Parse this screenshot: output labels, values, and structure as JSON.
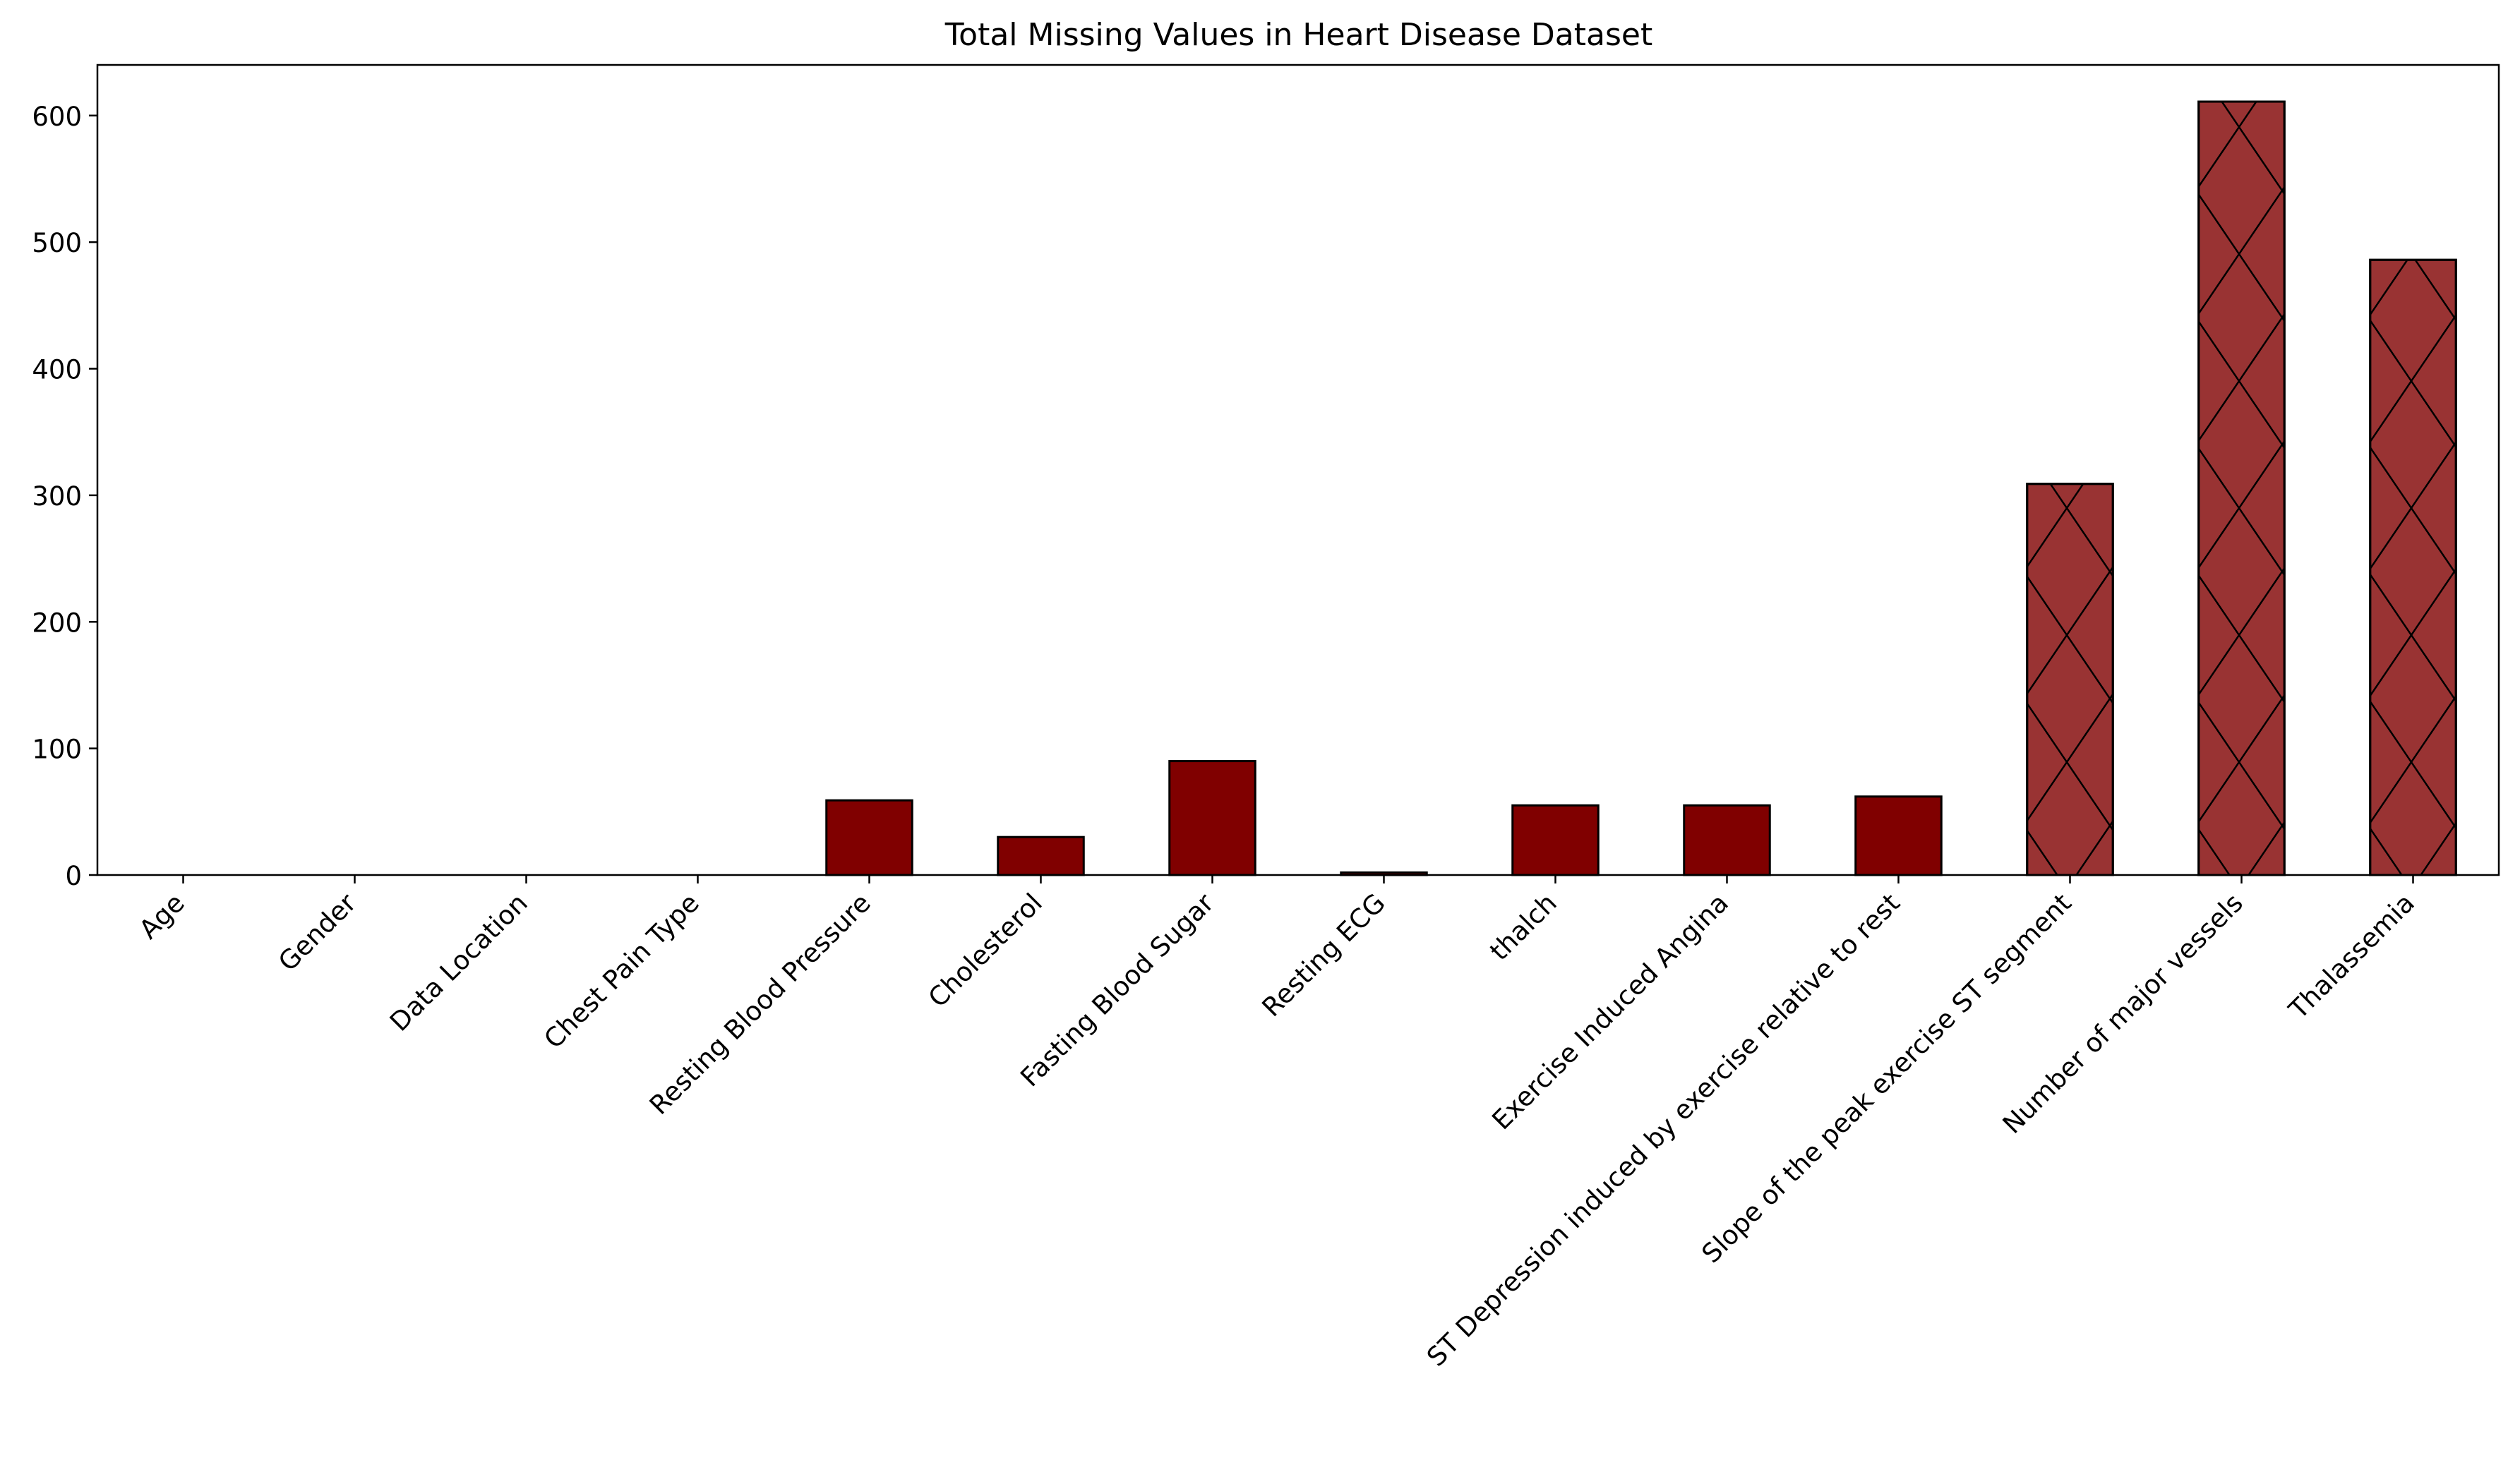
{
  "chart_data": {
    "type": "bar",
    "title": "Total Missing Values in Heart Disease Dataset",
    "xlabel": "",
    "ylabel": "",
    "categories": [
      "Age",
      "Gender",
      "Data Location",
      "Chest Pain Type",
      "Resting Blood Pressure",
      "Cholesterol",
      "Fasting Blood Sugar",
      "Resting ECG",
      "thalch",
      "Exercise Induced Angina",
      "ST Depression induced by exercise relative to rest",
      "Slope of the peak exercise ST segment",
      "Number of major vessels",
      "Thalassemia"
    ],
    "values": [
      0,
      0,
      0,
      0,
      59,
      30,
      90,
      2,
      55,
      55,
      62,
      309,
      611,
      486
    ],
    "hatched": [
      false,
      false,
      false,
      false,
      false,
      false,
      false,
      false,
      false,
      false,
      false,
      true,
      true,
      true
    ],
    "ylim": [
      0,
      640
    ],
    "yticks": [
      0,
      100,
      200,
      300,
      400,
      500,
      600
    ],
    "grid": false,
    "legend": "none",
    "colors": {
      "bar": "#800000",
      "bar_hatched": "#993333",
      "edge": "#000000",
      "hatch": "#000000"
    }
  }
}
